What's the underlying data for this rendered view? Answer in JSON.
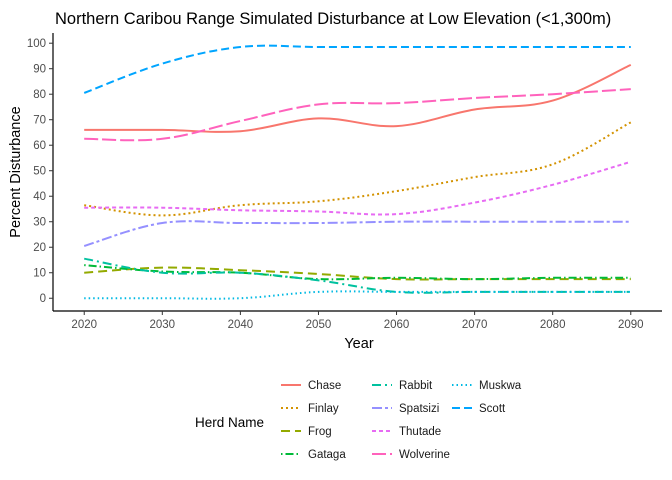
{
  "chart_data": {
    "type": "line",
    "title": "Northern Caribou Range Simulated Disturbance at Low Elevation (<1,300m)",
    "xlabel": "Year",
    "ylabel": "Percent Disturbance",
    "xlim": [
      2016,
      2094
    ],
    "ylim": [
      -5,
      104
    ],
    "x_ticks": [
      2020,
      2030,
      2040,
      2050,
      2060,
      2070,
      2080,
      2090
    ],
    "y_ticks": [
      0,
      10,
      20,
      30,
      40,
      50,
      60,
      70,
      80,
      90,
      100
    ],
    "grid": false,
    "legend": {
      "title": "Herd Name",
      "placement": "bottom"
    },
    "x": [
      2020,
      2030,
      2040,
      2050,
      2060,
      2070,
      2080,
      2090
    ],
    "series": [
      {
        "name": "Chase",
        "color": "#F8766D",
        "dash": "",
        "values": [
          66,
          66,
          65.5,
          70.5,
          67.5,
          74,
          77.5,
          91.5
        ]
      },
      {
        "name": "Finlay",
        "color": "#D39200",
        "dash": "2,3",
        "values": [
          36.5,
          32.5,
          36.5,
          38,
          42,
          47.5,
          52.5,
          69
        ]
      },
      {
        "name": "Frog",
        "color": "#93AA00",
        "dash": "9,5",
        "values": [
          10,
          12,
          11,
          9.5,
          7.5,
          7.5,
          7.5,
          7.5
        ]
      },
      {
        "name": "Gataga",
        "color": "#00BA38",
        "dash": "1.5,3,8,3",
        "values": [
          13,
          10.5,
          10,
          7.5,
          8,
          7.5,
          8,
          8
        ]
      },
      {
        "name": "Rabbit",
        "color": "#00C19F",
        "dash": "9,4,2,4",
        "values": [
          15.5,
          10,
          10,
          7,
          2.5,
          2.5,
          2.5,
          2.5
        ]
      },
      {
        "name": "Muskwa",
        "color": "#00B9E3",
        "dash": "1.5,3",
        "values": [
          0,
          0,
          0,
          2.5,
          2.5,
          2.5,
          2.5,
          2.5
        ]
      },
      {
        "name": "Scott",
        "color": "#00A5FF",
        "dash": "8,4",
        "values": [
          80.5,
          92,
          98.5,
          98.5,
          98.5,
          98.5,
          98.5,
          98.5
        ]
      },
      {
        "name": "Spatsizi",
        "color": "#9590FF",
        "dash": "10,3,3,3",
        "values": [
          20.5,
          29.5,
          29.5,
          29.5,
          30,
          30,
          30,
          30
        ]
      },
      {
        "name": "Thutade",
        "color": "#E76BF3",
        "dash": "4,3",
        "values": [
          35.5,
          35.5,
          34.5,
          34,
          33,
          37.5,
          44.5,
          53.5
        ]
      },
      {
        "name": "Wolverine",
        "color": "#FF62BC",
        "dash": "14,4",
        "values": [
          62.5,
          62.5,
          69.5,
          76,
          76.5,
          78.5,
          80,
          82
        ]
      }
    ],
    "legend_order": [
      "Chase",
      "Finlay",
      "Frog",
      "Gataga",
      "Rabbit",
      "Spatsizi",
      "Thutade",
      "Wolverine",
      "Muskwa",
      "Scott"
    ]
  }
}
